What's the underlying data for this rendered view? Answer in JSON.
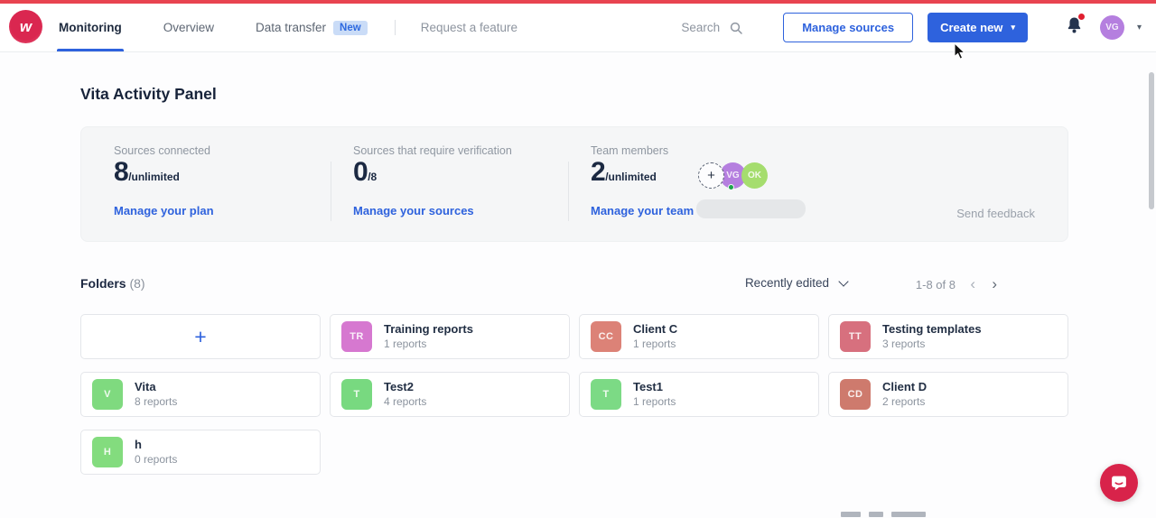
{
  "header": {
    "logo_letter": "w",
    "nav": [
      {
        "label": "Monitoring",
        "active": true
      },
      {
        "label": "Overview",
        "active": false
      },
      {
        "label": "Data transfer",
        "active": false,
        "badge": "New"
      }
    ],
    "request_feature": "Request a feature",
    "search_label": "Search",
    "manage_sources_label": "Manage sources",
    "create_new_label": "Create new",
    "avatar_initials": "VG"
  },
  "page_title": "Vita Activity Panel",
  "stats": [
    {
      "label": "Sources connected",
      "value": "8",
      "suffix": "/unlimited",
      "link": "Manage your plan"
    },
    {
      "label": "Sources that require verification",
      "value": "0",
      "suffix": "/8",
      "link": "Manage your sources"
    },
    {
      "label": "Team members",
      "value": "2",
      "suffix": "/unlimited",
      "link": "Manage your team"
    }
  ],
  "team": {
    "add_label": "+",
    "members": [
      {
        "initials": "VG",
        "color": "#b57fdf",
        "online": true
      },
      {
        "initials": "OK",
        "color": "#a5dd6e",
        "online": false
      }
    ]
  },
  "send_feedback_label": "Send feedback",
  "folders_section": {
    "title": "Folders",
    "count": "(8)",
    "sort_label": "Recently edited",
    "pagination": "1-8 of 8",
    "prev_arrow": "‹",
    "next_arrow": "›"
  },
  "folders": [
    {
      "type": "add",
      "label": "+"
    },
    {
      "name": "Training reports",
      "initials": "TR",
      "reports": "1 reports",
      "color": "#d678d0"
    },
    {
      "name": "Client C",
      "initials": "CC",
      "reports": "1 reports",
      "color": "#dc8277"
    },
    {
      "name": "Testing templates",
      "initials": "TT",
      "reports": "3 reports",
      "color": "#d7707e"
    },
    {
      "name": "Vita",
      "initials": "V",
      "reports": "8 reports",
      "color": "#7fda7f"
    },
    {
      "name": "Test2",
      "initials": "T",
      "reports": "4 reports",
      "color": "#78d980"
    },
    {
      "name": "Test1",
      "initials": "T",
      "reports": "1 reports",
      "color": "#7cda85"
    },
    {
      "name": "Client D",
      "initials": "CD",
      "reports": "2 reports",
      "color": "#ce7a6d"
    },
    {
      "name": "h",
      "initials": "H",
      "reports": "0 reports",
      "color": "#83dc7e"
    }
  ],
  "colors": {
    "accent_blue": "#2e62dd",
    "brand_red": "#d92a4e",
    "topbar_red": "#e84350",
    "notification_red": "#e01f2f",
    "online_green": "#1ea34d"
  }
}
